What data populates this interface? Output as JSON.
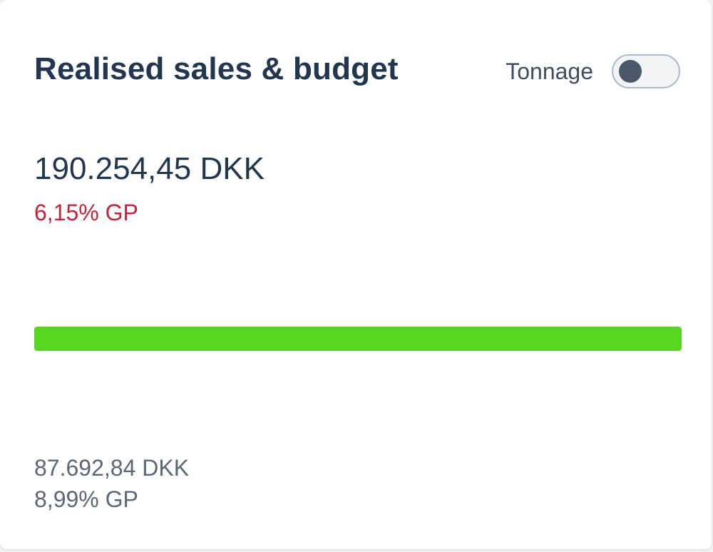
{
  "card": {
    "title": "Realised sales & budget",
    "toggle": {
      "label": "Tonnage",
      "on": false
    },
    "realised": {
      "amount": "190.254,45 DKK",
      "gp": "6,15% GP"
    },
    "progress": {
      "fill_fraction": 1.0,
      "fill_color": "#58d61f"
    },
    "budget": {
      "amount": "87.692,84 DKK",
      "gp": "8,99% GP"
    }
  },
  "colors": {
    "title": "#22374f",
    "gp_negative": "#c8223a",
    "muted_text": "#5b6775",
    "bar_fill": "#58d61f"
  }
}
